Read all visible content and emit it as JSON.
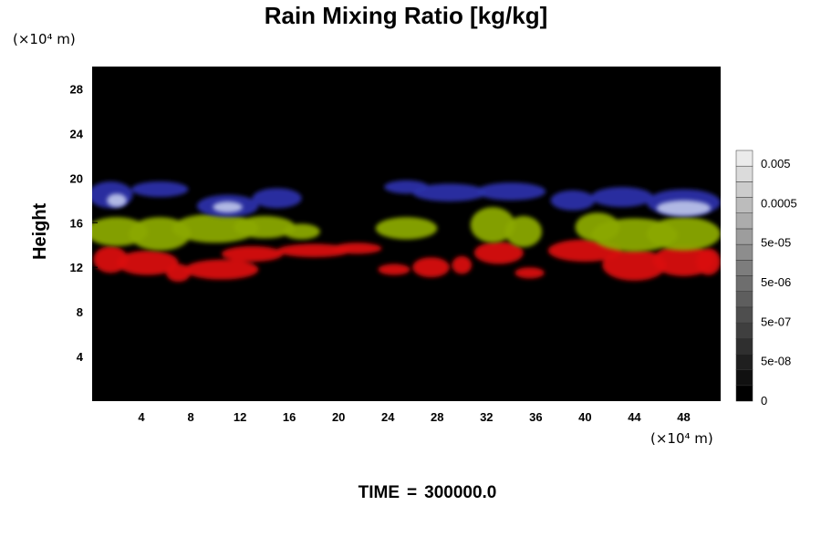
{
  "chart_data": {
    "type": "heatmap",
    "title": "Rain Mixing Ratio [kg/kg]",
    "ylabel": "Height",
    "xlabel": "",
    "x_unit": "(×10⁴ m)",
    "y_unit": "(×10⁴ m)",
    "xlim": [
      0,
      51
    ],
    "ylim": [
      0,
      30
    ],
    "x_ticks": [
      "4",
      "8",
      "12",
      "16",
      "20",
      "24",
      "28",
      "32",
      "36",
      "40",
      "44",
      "48"
    ],
    "y_ticks": [
      "4",
      "8",
      "12",
      "16",
      "20",
      "24",
      "28"
    ],
    "colorbar_labels": [
      "0.005",
      "0.0005",
      "5e-05",
      "5e-06",
      "5e-07",
      "5e-08",
      "0"
    ],
    "colorbar_levels": 16,
    "bands": [
      {
        "color": "#d81010",
        "y_range": [
          10.5,
          14
        ]
      },
      {
        "color": "#8aa800",
        "y_range": [
          13.5,
          17
        ]
      },
      {
        "color": "#2a30a8",
        "y_range": [
          16.5,
          20
        ]
      }
    ],
    "time_label": "TIME",
    "time_eq": "=",
    "time_value": "300000.0"
  },
  "colors": {
    "background": "#000000",
    "red": "#d81010",
    "green": "#8aa800",
    "blue": "#2a30a8",
    "white_blue": "#c8d0f0"
  }
}
